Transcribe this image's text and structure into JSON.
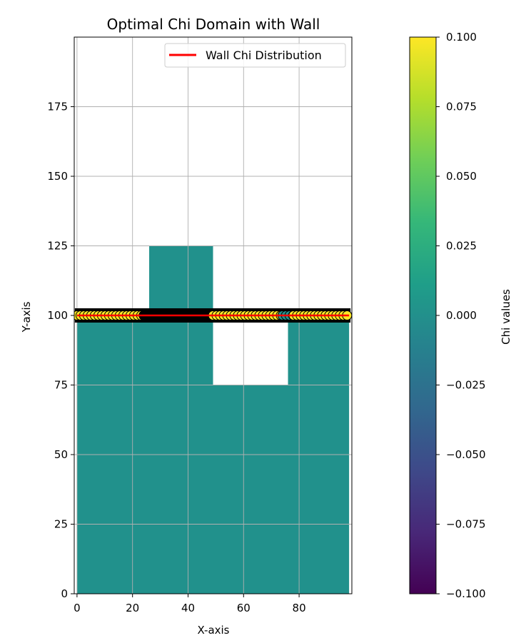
{
  "chart_data": {
    "type": "heatmap",
    "title": "Optimal Chi Domain with Wall",
    "xlabel": "X-axis",
    "ylabel": "Y-axis",
    "xlim": [
      -1,
      99
    ],
    "ylim": [
      0,
      200
    ],
    "grid": true,
    "x_ticks": [
      0,
      20,
      40,
      60,
      80
    ],
    "y_ticks": [
      0,
      25,
      50,
      75,
      100,
      125,
      150,
      175
    ],
    "legend": {
      "placement": "upper-right",
      "entries": [
        {
          "label": "Wall Chi Distribution",
          "color": "#ff0000"
        }
      ]
    },
    "domain_fill_color": "#21918c",
    "domain_regions": [
      {
        "x0": 0,
        "x1": 98,
        "y0": 0,
        "y1": 100
      },
      {
        "x0": 26,
        "x1": 49,
        "y0": 100,
        "y1": 125
      }
    ],
    "holes": [
      {
        "x0": 49,
        "x1": 76,
        "y0": 75,
        "y1": 100
      }
    ],
    "wall": {
      "y": 100,
      "x_range": [
        0,
        98
      ],
      "line_color": "#ff0000",
      "marker_edge_color": "#000000",
      "marker_segments": [
        {
          "x0": 0,
          "x1": 24,
          "color": "#fde725"
        },
        {
          "x0": 24,
          "x1": 49,
          "color": "#000000"
        },
        {
          "x0": 49,
          "x1": 74,
          "color": "#fde725"
        },
        {
          "x0": 74,
          "x1": 78,
          "color": "#21918c"
        },
        {
          "x0": 78,
          "x1": 98,
          "color": "#fde725"
        }
      ]
    },
    "colorbar": {
      "label": "Chi values",
      "vmin": -0.1,
      "vmax": 0.1,
      "ticks": [
        -0.1,
        -0.075,
        -0.05,
        -0.025,
        0.0,
        0.025,
        0.05,
        0.075,
        0.1
      ],
      "tick_labels": [
        "−0.100",
        "−0.075",
        "−0.050",
        "−0.025",
        "0.000",
        "0.025",
        "0.050",
        "0.075",
        "0.100"
      ],
      "colormap": "viridis",
      "colormap_stops": [
        "#440154",
        "#482878",
        "#3e4989",
        "#31688e",
        "#26828e",
        "#1f9e89",
        "#35b779",
        "#6ece58",
        "#b5de2b",
        "#fde725"
      ]
    }
  }
}
